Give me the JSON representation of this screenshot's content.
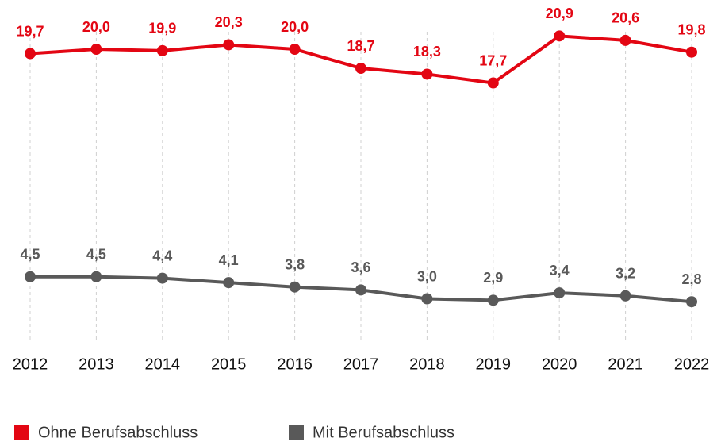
{
  "chart_data": {
    "type": "line",
    "categories": [
      "2012",
      "2013",
      "2014",
      "2015",
      "2016",
      "2017",
      "2018",
      "2019",
      "2020",
      "2021",
      "2022"
    ],
    "series": [
      {
        "name": "Ohne Berufsabschluss",
        "color": "#e30613",
        "values": [
          19.7,
          20.0,
          19.9,
          20.3,
          20.0,
          18.7,
          18.3,
          17.7,
          20.9,
          20.6,
          19.8
        ],
        "value_labels": [
          "19,7",
          "20,0",
          "19,9",
          "20,3",
          "20,0",
          "18,7",
          "18,3",
          "17,7",
          "20,9",
          "20,6",
          "19,8"
        ]
      },
      {
        "name": "Mit Berufsabschluss",
        "color": "#595959",
        "values": [
          4.5,
          4.5,
          4.4,
          4.1,
          3.8,
          3.6,
          3.0,
          2.9,
          3.4,
          3.2,
          2.8
        ],
        "value_labels": [
          "4,5",
          "4,5",
          "4,4",
          "4,1",
          "3,8",
          "3,6",
          "3,0",
          "2,9",
          "3,4",
          "3,2",
          "2,8"
        ]
      }
    ],
    "ylim": [
      0,
      23
    ],
    "grid": true,
    "legend": "bottom"
  }
}
